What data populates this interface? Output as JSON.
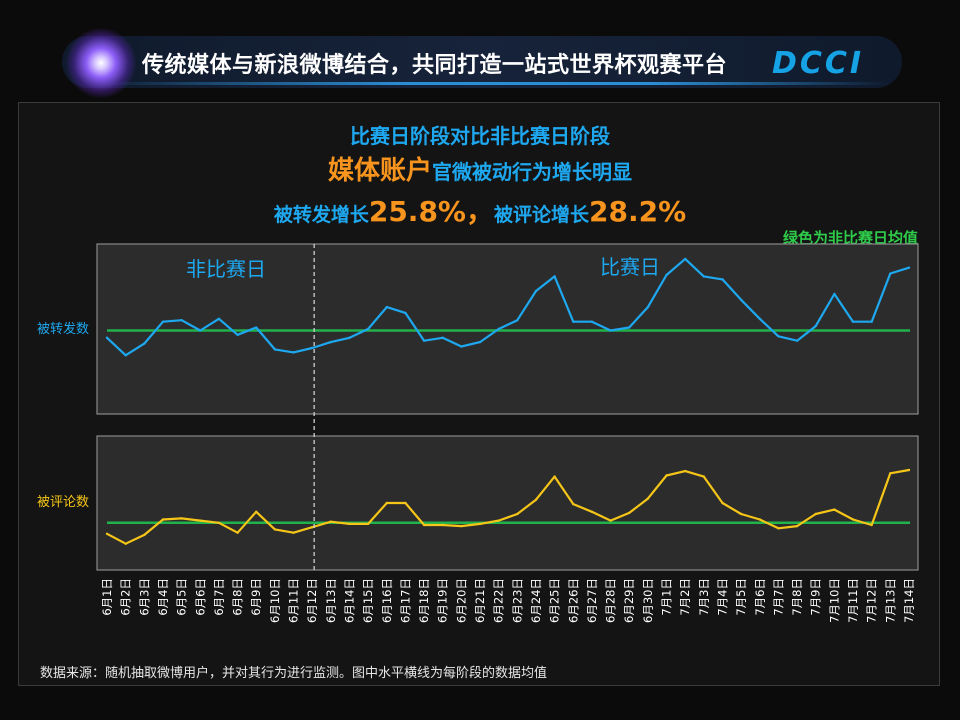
{
  "header": {
    "title": "传统媒体与新浪微博结合，共同打造一站式世界杯观赛平台",
    "logo": "DCCI"
  },
  "headline": {
    "line1": "比赛日阶段对比非比赛日阶段",
    "line2_highlight": "媒体账户",
    "line2_rest": "官微被动行为增长明显",
    "line3_a": "被转发增长",
    "line3_a_value": "25.8%",
    "line3_sep": "，",
    "line3_b": "被评论增长",
    "line3_b_value": "28.2%"
  },
  "legend_note": "绿色为非比赛日均值",
  "source": "数据来源：随机抽取微博用户，并对其行为进行监测。图中水平横线为每阶段的数据均值",
  "colors": {
    "forward": "#1ea8f0",
    "comment": "#f5c518",
    "mean": "#22b24c",
    "panel_bg": "#2c2c2c"
  },
  "chart_data": [
    {
      "type": "line",
      "name_label": "被转发数",
      "phase_labels": [
        "非比赛日",
        "比赛日"
      ],
      "phase_split_after": "6月12日",
      "categories": [
        "6月1日",
        "6月2日",
        "6月3日",
        "6月4日",
        "6月5日",
        "6月6日",
        "6月7日",
        "6月8日",
        "6月9日",
        "6月10日",
        "6月11日",
        "6月12日",
        "6月13日",
        "6月14日",
        "6月15日",
        "6月16日",
        "6月17日",
        "6月18日",
        "6月19日",
        "6月20日",
        "6月21日",
        "6月22日",
        "6月23日",
        "6月24日",
        "6月25日",
        "6月26日",
        "6月27日",
        "6月28日",
        "6月29日",
        "6月30日",
        "7月1日",
        "7月2日",
        "7月3日",
        "7月4日",
        "7月5日",
        "7月6日",
        "7月7日",
        "7月8日",
        "7月9日",
        "7月10日",
        "7月11日",
        "7月12日",
        "7月13日",
        "7月14日"
      ],
      "values": [
        0.44,
        0.32,
        0.4,
        0.55,
        0.56,
        0.49,
        0.57,
        0.46,
        0.51,
        0.36,
        0.34,
        0.37,
        0.41,
        0.44,
        0.5,
        0.65,
        0.61,
        0.42,
        0.44,
        0.38,
        0.41,
        0.5,
        0.56,
        0.76,
        0.86,
        0.55,
        0.55,
        0.49,
        0.51,
        0.65,
        0.87,
        0.98,
        0.86,
        0.84,
        0.7,
        0.57,
        0.45,
        0.42,
        0.52,
        0.74,
        0.55,
        0.55,
        0.88,
        0.92
      ],
      "mean": 0.49,
      "ylim": [
        0,
        1
      ]
    },
    {
      "type": "line",
      "name_label": "被评论数",
      "categories": [
        "6月1日",
        "6月2日",
        "6月3日",
        "6月4日",
        "6月5日",
        "6月6日",
        "6月7日",
        "6月8日",
        "6月9日",
        "6月10日",
        "6月11日",
        "6月12日",
        "6月13日",
        "6月14日",
        "6月15日",
        "6月16日",
        "6月17日",
        "6月18日",
        "6月19日",
        "6月20日",
        "6月21日",
        "6月22日",
        "6月23日",
        "6月24日",
        "6月25日",
        "6月26日",
        "6月27日",
        "6月28日",
        "6月29日",
        "6月30日",
        "7月1日",
        "7月2日",
        "7月3日",
        "7月4日",
        "7月5日",
        "7月6日",
        "7月7日",
        "7月8日",
        "7月9日",
        "7月10日",
        "7月11日",
        "7月12日",
        "7月13日",
        "7月14日"
      ],
      "values": [
        0.22,
        0.13,
        0.21,
        0.35,
        0.36,
        0.34,
        0.32,
        0.23,
        0.42,
        0.26,
        0.23,
        0.28,
        0.33,
        0.31,
        0.31,
        0.5,
        0.5,
        0.3,
        0.3,
        0.29,
        0.31,
        0.34,
        0.4,
        0.53,
        0.74,
        0.49,
        0.42,
        0.34,
        0.41,
        0.54,
        0.75,
        0.79,
        0.74,
        0.5,
        0.4,
        0.35,
        0.27,
        0.29,
        0.4,
        0.44,
        0.35,
        0.3,
        0.77,
        0.8
      ],
      "mean": 0.32,
      "ylim": [
        0,
        1
      ]
    }
  ]
}
